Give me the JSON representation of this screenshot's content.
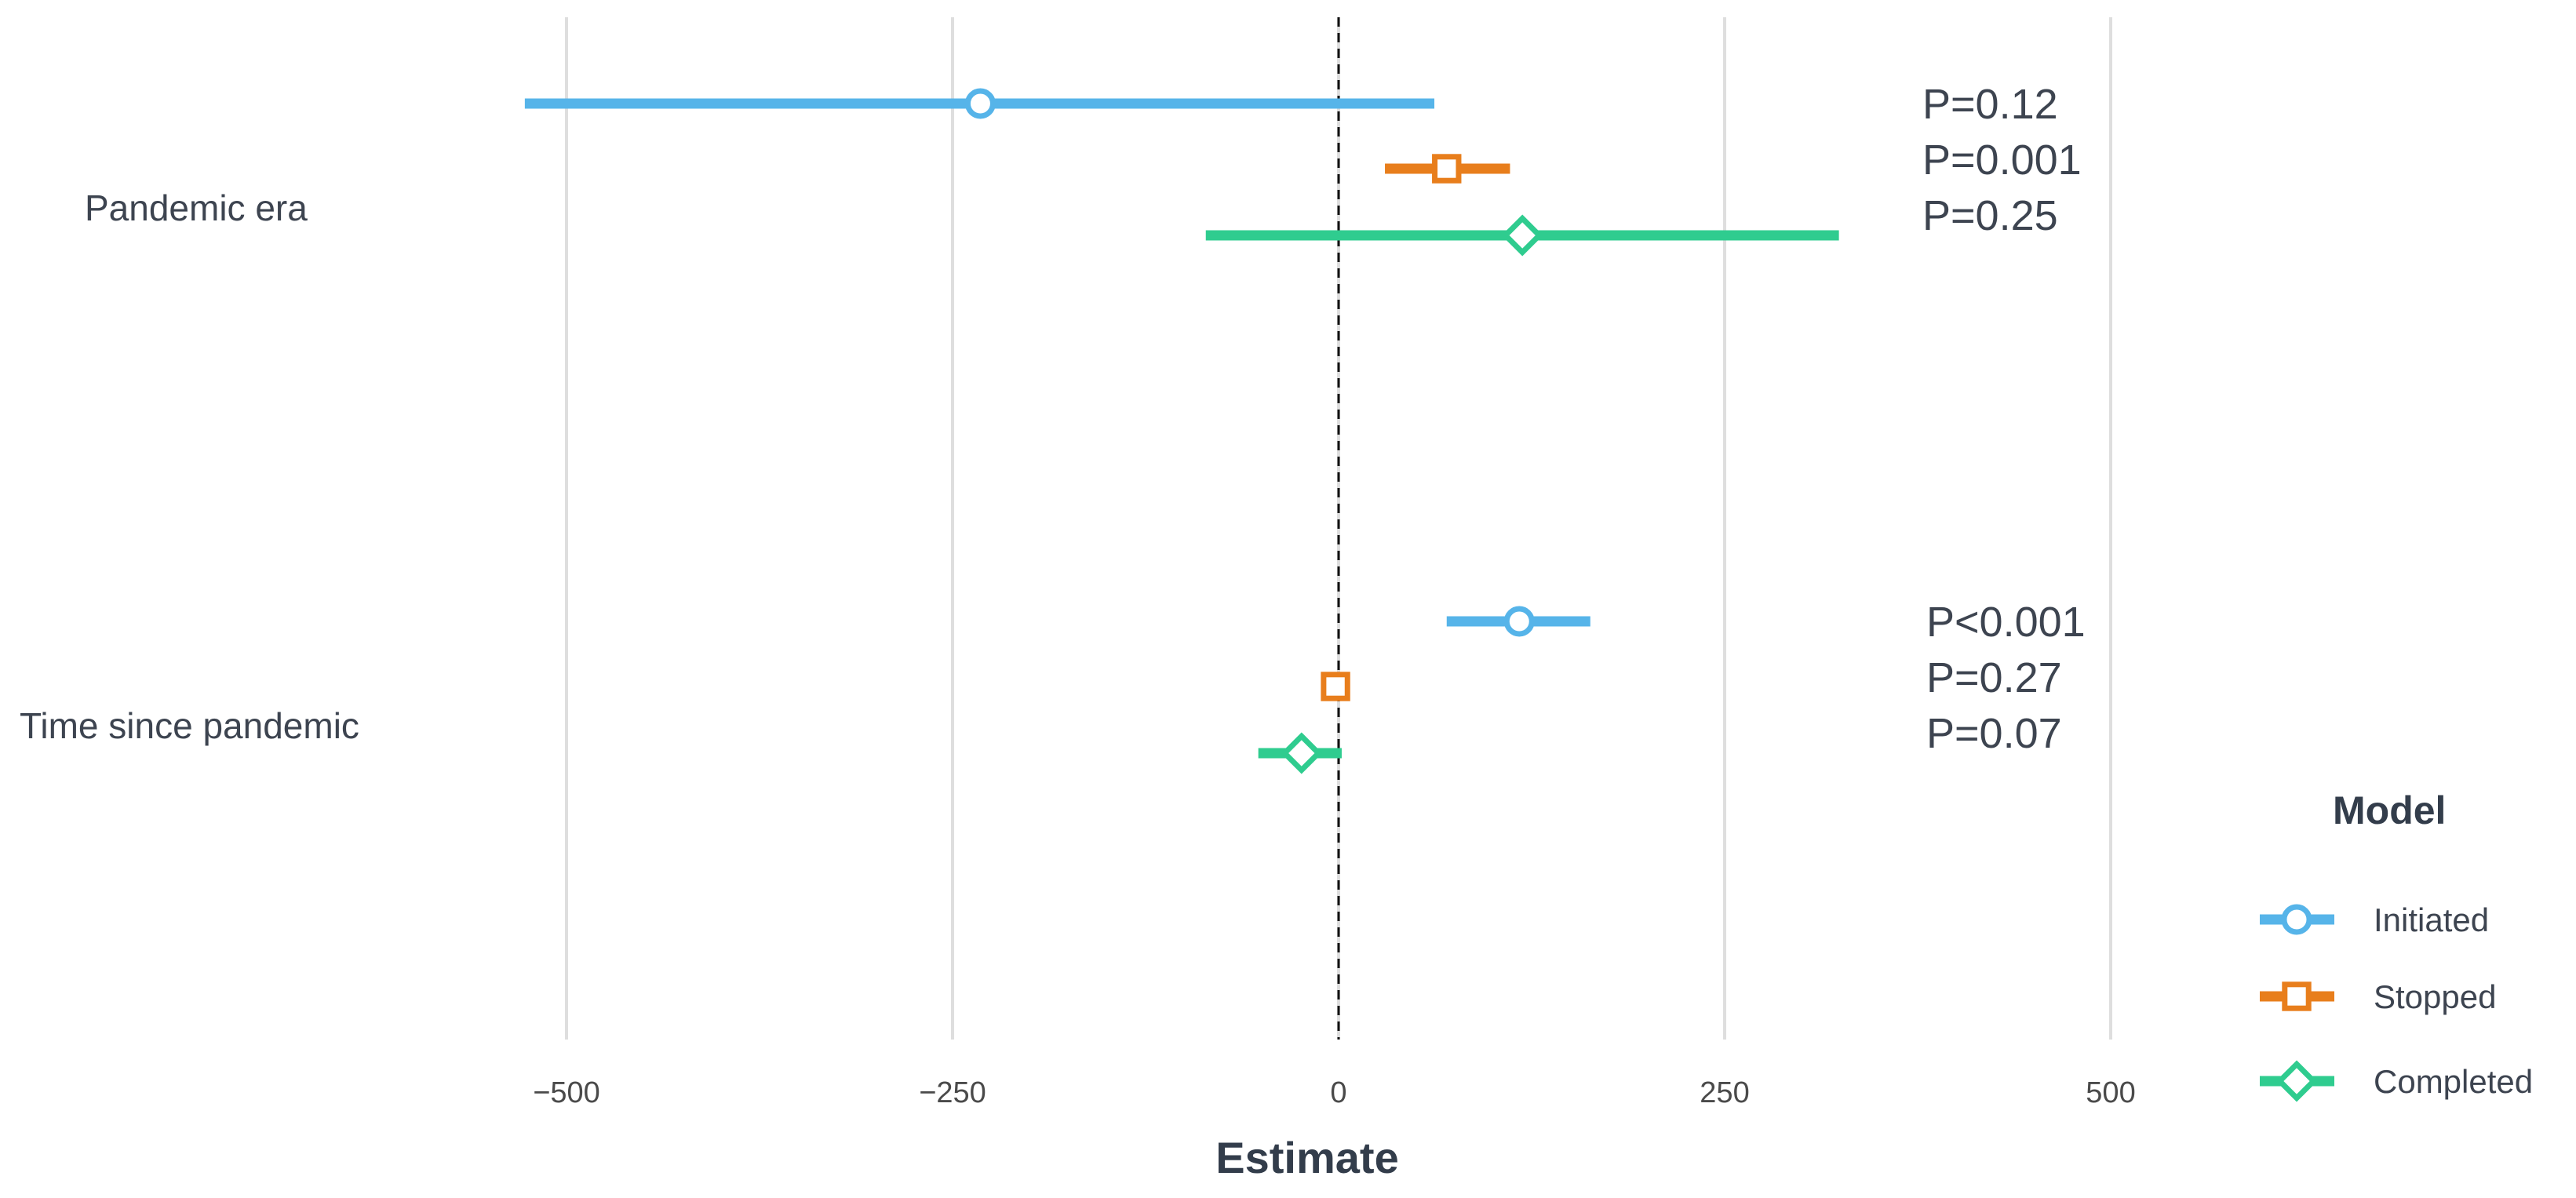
{
  "chart_data": {
    "type": "scatter",
    "subtype": "forest-plot",
    "xlabel": "Estimate",
    "ylabel": "",
    "xlim": [
      -500,
      500
    ],
    "x_ticks": [
      -500,
      -250,
      0,
      250,
      500
    ],
    "x_tick_labels": [
      "−500",
      "−250",
      "0",
      "250",
      "500"
    ],
    "reference_line": 0,
    "grid": "vertical-major",
    "categories": [
      "Pandemic era",
      "Time since pandemic"
    ],
    "series": [
      {
        "name": "Initiated",
        "color": "#56b4e9",
        "marker": "circle",
        "estimates": [
          -232,
          117
        ],
        "lower": [
          -527,
          70
        ],
        "upper": [
          62,
          163
        ],
        "p_labels": [
          "P=0.12",
          "P<0.001"
        ]
      },
      {
        "name": "Stopped",
        "color": "#e87e1c",
        "marker": "square",
        "estimates": [
          70,
          -2
        ],
        "lower": [
          30,
          -5
        ],
        "upper": [
          111,
          1
        ],
        "p_labels": [
          "P=0.001",
          "P=0.27"
        ]
      },
      {
        "name": "Completed",
        "color": "#2fcc8f",
        "marker": "diamond",
        "estimates": [
          119,
          -24
        ],
        "lower": [
          -86,
          -52
        ],
        "upper": [
          324,
          2
        ],
        "p_labels": [
          "P=0.25",
          "P=0.07"
        ]
      }
    ],
    "legend": {
      "title": "Model",
      "position": "right"
    }
  }
}
